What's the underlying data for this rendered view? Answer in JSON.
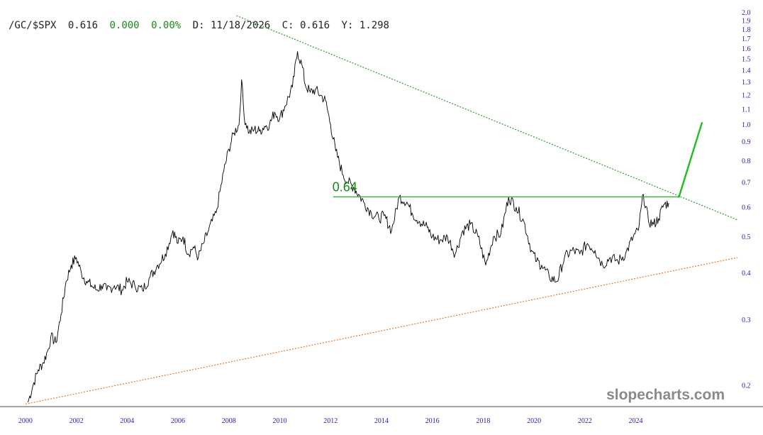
{
  "header": {
    "symbol": "/GC/$SPX",
    "last": "0.616",
    "change": "0.000",
    "change_pct": "0.00%",
    "date_label": "D: 11/18/2026",
    "close_label": "C: 0.616",
    "y_label": "Y: 1.298"
  },
  "colors": {
    "background": "#ffffff",
    "price_line": "#000000",
    "header_text": "#222222",
    "change_text": "#1a8a1a",
    "tick_text": "#1f1fa8",
    "resistance_line": "#3aa83a",
    "annotation": "#118811",
    "upper_trend": "#2e9a2e",
    "lower_trend": "#ee7722",
    "projection_arrow": "#22bb22",
    "axis": "#888888",
    "watermark": "#8a8a8a"
  },
  "watermark": "slopecharts.com",
  "chart_data": {
    "type": "line",
    "title": "",
    "xlabel": "",
    "ylabel": "",
    "y_scale": "log",
    "xlim": [
      1999.0,
      2028.0
    ],
    "ylim": [
      0.176,
      2.03
    ],
    "x_ticks": [
      2000,
      2002,
      2004,
      2006,
      2008,
      2010,
      2012,
      2014,
      2016,
      2018,
      2020,
      2022,
      2024
    ],
    "x_tick_labels": [
      "2000",
      "2002",
      "2004",
      "2006",
      "2008",
      "2010",
      "2012",
      "2014",
      "2016",
      "2018",
      "2020",
      "2022",
      "2024"
    ],
    "y_ticks": [
      0.2,
      0.3,
      0.4,
      0.5,
      0.6,
      0.7,
      0.8,
      0.9,
      1.0,
      1.1,
      1.2,
      1.3,
      1.4,
      1.5,
      1.6,
      1.7,
      1.8,
      1.9,
      2.0
    ],
    "y_tick_labels": [
      "0.2",
      "0.3",
      "0.4",
      "0.5",
      "0.6",
      "0.7",
      "0.8",
      "0.9",
      "1.0",
      "1.1",
      "1.2",
      "1.3",
      "1.4",
      "1.5",
      "1.6",
      "1.7",
      "1.8",
      "1.9",
      "2.0"
    ],
    "grid": false,
    "series": [
      {
        "x": [
          2000.1,
          2000.3,
          2000.5,
          2000.7,
          2000.9,
          2001.0,
          2001.2,
          2001.4,
          2001.6,
          2001.8,
          2002.0,
          2002.2,
          2002.4,
          2002.6,
          2002.8,
          2003.0,
          2003.2,
          2003.5,
          2003.8,
          2004.0,
          2004.3,
          2004.6,
          2004.9,
          2005.2,
          2005.5,
          2005.8,
          2006.0,
          2006.2,
          2006.4,
          2006.6,
          2006.8,
          2007.0,
          2007.2,
          2007.5,
          2007.8,
          2008.0,
          2008.2,
          2008.4,
          2008.5,
          2008.6,
          2008.8,
          2009.0,
          2009.2,
          2009.4,
          2009.6,
          2009.8,
          2010.0,
          2010.2,
          2010.5,
          2010.7,
          2010.9,
          2011.0,
          2011.2,
          2011.4,
          2011.6,
          2011.8,
          2012.0,
          2012.2,
          2012.5,
          2012.7,
          2012.9,
          2013.1,
          2013.3,
          2013.6,
          2013.9,
          2014.1,
          2014.4,
          2014.7,
          2015.0,
          2015.2,
          2015.5,
          2015.8,
          2016.0,
          2016.3,
          2016.6,
          2016.9,
          2017.2,
          2017.5,
          2017.8,
          2018.1,
          2018.4,
          2018.7,
          2019.0,
          2019.3,
          2019.6,
          2019.9,
          2020.1,
          2020.3,
          2020.6,
          2020.9,
          2021.2,
          2021.5,
          2021.8,
          2022.1,
          2022.4,
          2022.7,
          2023.0,
          2023.3,
          2023.6,
          2023.9,
          2024.1,
          2024.3,
          2024.5,
          2024.7,
          2024.9,
          2025.1,
          2025.3
        ],
        "y": [
          0.18,
          0.2,
          0.22,
          0.23,
          0.25,
          0.27,
          0.26,
          0.31,
          0.38,
          0.42,
          0.44,
          0.4,
          0.38,
          0.37,
          0.36,
          0.37,
          0.36,
          0.37,
          0.36,
          0.38,
          0.37,
          0.36,
          0.39,
          0.42,
          0.45,
          0.52,
          0.48,
          0.5,
          0.45,
          0.47,
          0.44,
          0.48,
          0.52,
          0.58,
          0.75,
          0.86,
          0.95,
          1.0,
          1.32,
          1.05,
          0.95,
          0.97,
          0.96,
          0.99,
          1.0,
          1.08,
          1.04,
          1.12,
          1.26,
          1.57,
          1.42,
          1.28,
          1.22,
          1.24,
          1.2,
          1.16,
          1.0,
          0.85,
          0.73,
          0.7,
          0.68,
          0.65,
          0.62,
          0.58,
          0.56,
          0.57,
          0.52,
          0.64,
          0.62,
          0.58,
          0.55,
          0.53,
          0.5,
          0.49,
          0.5,
          0.45,
          0.52,
          0.54,
          0.5,
          0.42,
          0.5,
          0.51,
          0.64,
          0.6,
          0.55,
          0.46,
          0.43,
          0.42,
          0.39,
          0.38,
          0.44,
          0.46,
          0.45,
          0.48,
          0.46,
          0.42,
          0.44,
          0.43,
          0.45,
          0.5,
          0.52,
          0.65,
          0.55,
          0.54,
          0.56,
          0.61,
          0.616
        ]
      }
    ],
    "annotations": {
      "resistance_label": "0.64",
      "resistance_level": 0.64,
      "resistance_from_year": 2012.1,
      "upper_trendline": [
        [
          2008.3,
          1.96
        ],
        [
          2028.0,
          0.555
        ]
      ],
      "lower_trendline": [
        [
          2000.0,
          0.178
        ],
        [
          2028.0,
          0.44
        ]
      ],
      "projection_arrow": [
        [
          2025.7,
          0.64
        ],
        [
          2026.6,
          1.01
        ]
      ]
    }
  }
}
